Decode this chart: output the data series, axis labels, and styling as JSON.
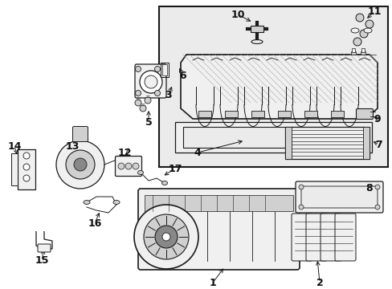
{
  "bg_color": "#ffffff",
  "line_color": "#1a1a1a",
  "hatch_color": "#888888",
  "fill_white": "#ffffff",
  "fill_light": "#f0f0f0",
  "fill_gray": "#d0d0d0",
  "fill_dark": "#888888",
  "box_bg": "#ebebeb",
  "text_color": "#111111",
  "fig_width": 4.89,
  "fig_height": 3.6,
  "dpi": 100
}
